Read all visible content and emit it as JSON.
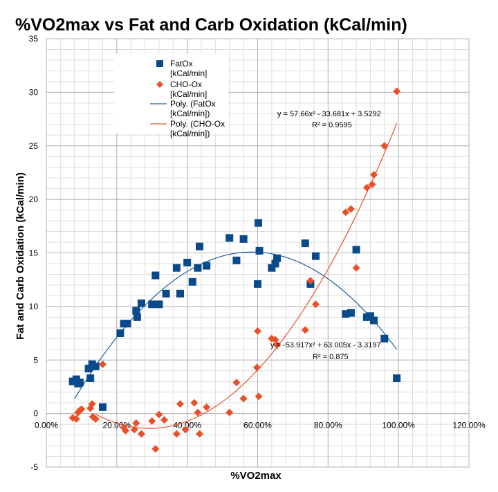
{
  "chart_data": {
    "type": "scatter",
    "title": "%VO2max  vs Fat and Carb Oxidation (kCal/min)",
    "xlabel": "%VO2max",
    "ylabel": "Fat and Carb Oxidation (kCal/min)",
    "xlim": [
      0,
      1.2
    ],
    "ylim": [
      -5,
      35
    ],
    "x_ticks": [
      "0.00%",
      "20.00%",
      "40.00%",
      "60.00%",
      "80.00%",
      "100.00%",
      "120.00%"
    ],
    "y_ticks": [
      "-5",
      "0",
      "5",
      "10",
      "15",
      "20",
      "25",
      "30",
      "35"
    ],
    "grid": true,
    "legend_position": "top-left",
    "series": [
      {
        "name": "FatOx [kCal/min]",
        "marker": "square",
        "color": "#0a4a8a",
        "points": [
          [
            0.075,
            3.0
          ],
          [
            0.085,
            3.2
          ],
          [
            0.09,
            2.8
          ],
          [
            0.095,
            2.9
          ],
          [
            0.12,
            4.2
          ],
          [
            0.125,
            3.3
          ],
          [
            0.13,
            4.6
          ],
          [
            0.14,
            4.4
          ],
          [
            0.16,
            0.6
          ],
          [
            0.21,
            7.5
          ],
          [
            0.22,
            8.4
          ],
          [
            0.23,
            8.4
          ],
          [
            0.255,
            9.6
          ],
          [
            0.258,
            9.0
          ],
          [
            0.27,
            10.3
          ],
          [
            0.3,
            10.2
          ],
          [
            0.31,
            12.9
          ],
          [
            0.32,
            10.2
          ],
          [
            0.34,
            11.2
          ],
          [
            0.37,
            13.6
          ],
          [
            0.38,
            11.2
          ],
          [
            0.4,
            14.1
          ],
          [
            0.415,
            12.3
          ],
          [
            0.43,
            13.6
          ],
          [
            0.435,
            15.6
          ],
          [
            0.455,
            13.8
          ],
          [
            0.52,
            16.4
          ],
          [
            0.54,
            14.3
          ],
          [
            0.56,
            16.3
          ],
          [
            0.6,
            12.1
          ],
          [
            0.602,
            17.8
          ],
          [
            0.605,
            15.2
          ],
          [
            0.64,
            13.6
          ],
          [
            0.65,
            14.0
          ],
          [
            0.655,
            14.5
          ],
          [
            0.735,
            15.9
          ],
          [
            0.75,
            12.1
          ],
          [
            0.765,
            14.7
          ],
          [
            0.85,
            9.3
          ],
          [
            0.865,
            9.4
          ],
          [
            0.88,
            15.3
          ],
          [
            0.91,
            9.0
          ],
          [
            0.92,
            9.1
          ],
          [
            0.93,
            8.7
          ],
          [
            0.96,
            7.0
          ],
          [
            0.995,
            3.3
          ]
        ],
        "fit_name": "Poly. (FatOx [kCal/min])",
        "fit_color": "#1f5fa0",
        "fit_coeffs": [
          -53.917,
          63.005,
          -3.3197
        ],
        "fit_range": [
          0.08,
          0.995
        ],
        "equation": "y = -53.917x² + 63.005x - 3.3197",
        "r2": "R² = 0.875"
      },
      {
        "name": "CHO-Ox [kCal/min]",
        "marker": "diamond",
        "color": "#e8502a",
        "points": [
          [
            0.075,
            -0.4
          ],
          [
            0.085,
            -0.5
          ],
          [
            0.09,
            0.1
          ],
          [
            0.095,
            0.3
          ],
          [
            0.1,
            0.4
          ],
          [
            0.125,
            0.5
          ],
          [
            0.13,
            0.9
          ],
          [
            0.132,
            -0.3
          ],
          [
            0.14,
            -0.5
          ],
          [
            0.16,
            4.6
          ],
          [
            0.22,
            -1.3
          ],
          [
            0.225,
            -1.6
          ],
          [
            0.25,
            -1.5
          ],
          [
            0.255,
            -0.9
          ],
          [
            0.27,
            -1.9
          ],
          [
            0.3,
            -0.7
          ],
          [
            0.31,
            -3.3
          ],
          [
            0.32,
            -0.1
          ],
          [
            0.335,
            -0.6
          ],
          [
            0.37,
            -1.9
          ],
          [
            0.38,
            0.9
          ],
          [
            0.395,
            -1.5
          ],
          [
            0.42,
            1.0
          ],
          [
            0.43,
            0.1
          ],
          [
            0.435,
            -1.9
          ],
          [
            0.455,
            0.6
          ],
          [
            0.52,
            0.1
          ],
          [
            0.54,
            2.9
          ],
          [
            0.56,
            1.4
          ],
          [
            0.598,
            4.3
          ],
          [
            0.6,
            7.7
          ],
          [
            0.603,
            1.6
          ],
          [
            0.64,
            7.0
          ],
          [
            0.65,
            6.9
          ],
          [
            0.655,
            6.4
          ],
          [
            0.735,
            7.8
          ],
          [
            0.75,
            12.4
          ],
          [
            0.765,
            10.2
          ],
          [
            0.85,
            18.8
          ],
          [
            0.865,
            19.1
          ],
          [
            0.88,
            13.6
          ],
          [
            0.91,
            21.1
          ],
          [
            0.925,
            21.4
          ],
          [
            0.93,
            22.3
          ],
          [
            0.96,
            25.0
          ],
          [
            0.995,
            30.1
          ]
        ],
        "fit_name": "Poly. (CHO-Ox [kCal/min])",
        "fit_color": "#e8502a",
        "fit_coeffs": [
          57.66,
          -33.681,
          3.5292
        ],
        "fit_range": [
          0.14,
          0.995
        ],
        "equation": "y = 57.66x² - 33.681x + 3.5292",
        "r2": "R² = 0.9595"
      }
    ]
  }
}
